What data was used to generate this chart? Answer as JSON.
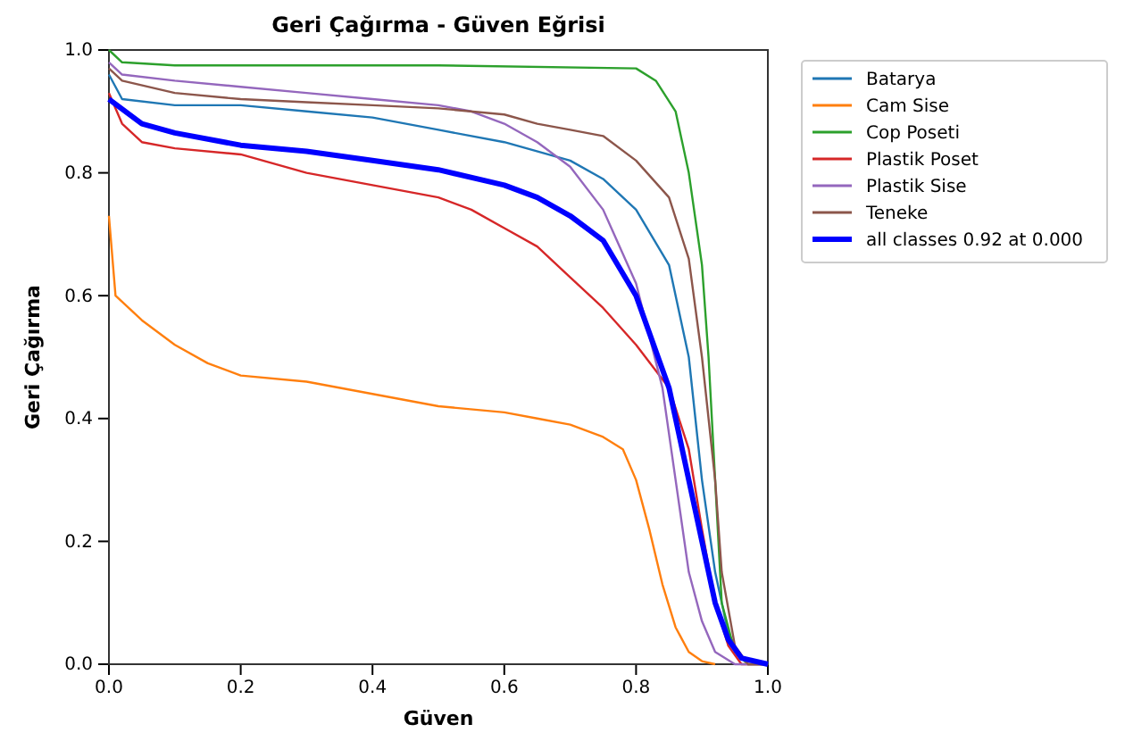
{
  "chart_data": {
    "type": "line",
    "title": "Geri Çağırma - Güven Eğrisi",
    "xlabel": "Güven",
    "ylabel": "Geri Çağırma",
    "xlim": [
      0,
      1
    ],
    "ylim": [
      0,
      1
    ],
    "xticks": [
      {
        "value": 0,
        "label": "0.0"
      },
      {
        "value": 0.2,
        "label": "0.2"
      },
      {
        "value": 0.4,
        "label": "0.4"
      },
      {
        "value": 0.6,
        "label": "0.6"
      },
      {
        "value": 0.8,
        "label": "0.8"
      },
      {
        "value": 1,
        "label": "1.0"
      }
    ],
    "yticks": [
      {
        "value": 0,
        "label": "0.0"
      },
      {
        "value": 0.2,
        "label": "0.2"
      },
      {
        "value": 0.4,
        "label": "0.4"
      },
      {
        "value": 0.6,
        "label": "0.6"
      },
      {
        "value": 0.8,
        "label": "0.8"
      },
      {
        "value": 1,
        "label": "1.0"
      }
    ],
    "grid": false,
    "legend": "right",
    "marker": "none",
    "line_style": "solid",
    "series": [
      {
        "name": "Batarya",
        "color": "#1f77b4",
        "x": [
          0,
          0.02,
          0.1,
          0.2,
          0.3,
          0.4,
          0.5,
          0.6,
          0.7,
          0.75,
          0.8,
          0.85,
          0.88,
          0.9,
          0.92,
          0.94,
          0.96,
          1
        ],
        "values": [
          0.96,
          0.92,
          0.91,
          0.91,
          0.9,
          0.89,
          0.87,
          0.85,
          0.82,
          0.79,
          0.74,
          0.65,
          0.5,
          0.3,
          0.15,
          0.05,
          0.01,
          0
        ]
      },
      {
        "name": "Cam Sise",
        "color": "#ff7f0e",
        "x": [
          0,
          0.01,
          0.05,
          0.1,
          0.15,
          0.2,
          0.3,
          0.4,
          0.5,
          0.6,
          0.65,
          0.7,
          0.75,
          0.78,
          0.8,
          0.82,
          0.84,
          0.86,
          0.88,
          0.9,
          0.92
        ],
        "values": [
          0.73,
          0.6,
          0.56,
          0.52,
          0.49,
          0.47,
          0.46,
          0.44,
          0.42,
          0.41,
          0.4,
          0.39,
          0.37,
          0.35,
          0.3,
          0.22,
          0.13,
          0.06,
          0.02,
          0.005,
          0
        ]
      },
      {
        "name": "Cop Poseti",
        "color": "#2ca02c",
        "x": [
          0,
          0.02,
          0.1,
          0.5,
          0.8,
          0.83,
          0.86,
          0.88,
          0.9,
          0.91,
          0.92,
          0.93,
          0.95,
          0.97,
          1
        ],
        "values": [
          1,
          0.98,
          0.975,
          0.975,
          0.97,
          0.95,
          0.9,
          0.8,
          0.65,
          0.5,
          0.3,
          0.1,
          0.02,
          0,
          0
        ]
      },
      {
        "name": "Plastik Poset",
        "color": "#d62728",
        "x": [
          0,
          0.02,
          0.05,
          0.1,
          0.2,
          0.3,
          0.4,
          0.5,
          0.55,
          0.6,
          0.65,
          0.7,
          0.75,
          0.8,
          0.85,
          0.88,
          0.9,
          0.92,
          0.94,
          0.96,
          1
        ],
        "values": [
          0.93,
          0.88,
          0.85,
          0.84,
          0.83,
          0.8,
          0.78,
          0.76,
          0.74,
          0.71,
          0.68,
          0.63,
          0.58,
          0.52,
          0.45,
          0.35,
          0.22,
          0.1,
          0.03,
          0,
          0
        ]
      },
      {
        "name": "Plastik Sise",
        "color": "#9467bd",
        "x": [
          0,
          0.02,
          0.1,
          0.2,
          0.3,
          0.4,
          0.5,
          0.55,
          0.6,
          0.65,
          0.7,
          0.75,
          0.8,
          0.84,
          0.86,
          0.88,
          0.9,
          0.92,
          0.95,
          1
        ],
        "values": [
          0.98,
          0.96,
          0.95,
          0.94,
          0.93,
          0.92,
          0.91,
          0.9,
          0.88,
          0.85,
          0.81,
          0.74,
          0.62,
          0.45,
          0.3,
          0.15,
          0.07,
          0.02,
          0,
          0
        ]
      },
      {
        "name": "Teneke",
        "color": "#8c564b",
        "x": [
          0,
          0.02,
          0.1,
          0.2,
          0.3,
          0.4,
          0.5,
          0.6,
          0.65,
          0.7,
          0.75,
          0.8,
          0.85,
          0.88,
          0.9,
          0.92,
          0.93,
          0.95,
          0.97,
          1
        ],
        "values": [
          0.97,
          0.95,
          0.93,
          0.92,
          0.915,
          0.91,
          0.905,
          0.895,
          0.88,
          0.87,
          0.86,
          0.82,
          0.76,
          0.66,
          0.5,
          0.3,
          0.15,
          0.03,
          0,
          0
        ]
      },
      {
        "name": "all classes 0.92 at 0.000",
        "color": "#0000ff",
        "x": [
          0,
          0.05,
          0.1,
          0.2,
          0.3,
          0.4,
          0.5,
          0.6,
          0.65,
          0.7,
          0.75,
          0.8,
          0.85,
          0.88,
          0.9,
          0.92,
          0.94,
          0.96,
          1
        ],
        "values": [
          0.92,
          0.88,
          0.865,
          0.845,
          0.835,
          0.82,
          0.805,
          0.78,
          0.76,
          0.73,
          0.69,
          0.6,
          0.45,
          0.3,
          0.2,
          0.1,
          0.04,
          0.01,
          0
        ]
      }
    ]
  }
}
